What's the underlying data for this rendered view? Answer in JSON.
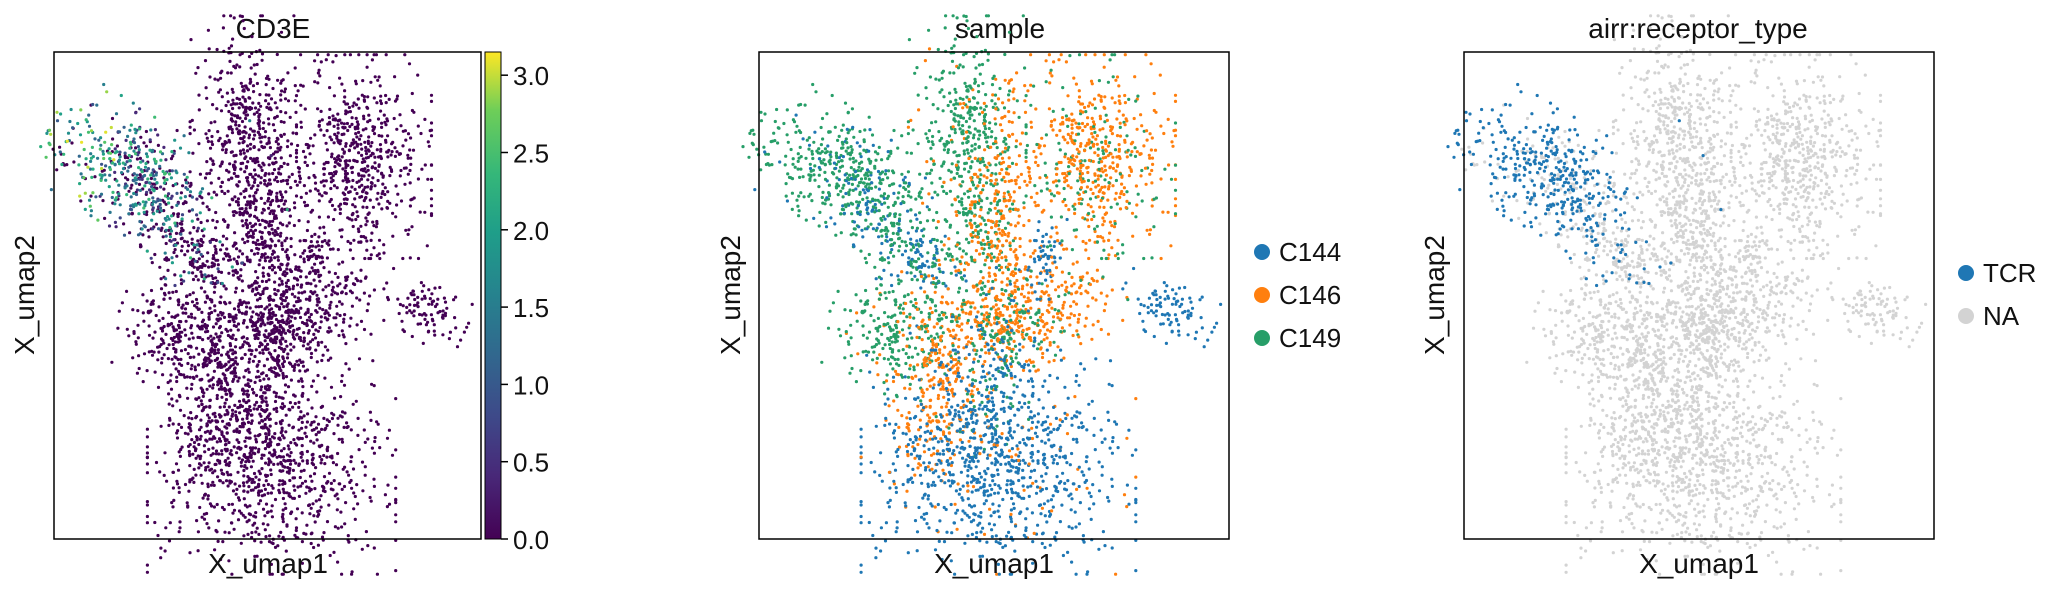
{
  "chart_data": [
    {
      "type": "scatter",
      "title": "CD3E",
      "xlabel": "X_umap1",
      "ylabel": "X_umap2",
      "color_by": "continuous",
      "colormap": "viridis",
      "colorbar": {
        "min": 0.0,
        "max": 3.15,
        "ticks": [
          "0.0",
          "0.5",
          "1.0",
          "1.5",
          "2.0",
          "2.5",
          "3.0"
        ],
        "tick_values": [
          0.0,
          0.5,
          1.0,
          1.5,
          2.0,
          2.5,
          3.0
        ]
      },
      "grid": false,
      "legend": "none"
    },
    {
      "type": "scatter",
      "title": "sample",
      "xlabel": "X_umap1",
      "ylabel": "X_umap2",
      "color_by": "categorical",
      "legend": "right",
      "grid": false,
      "categories": [
        {
          "name": "C144",
          "color": "#1f77b4"
        },
        {
          "name": "C146",
          "color": "#ff7f0e"
        },
        {
          "name": "C149",
          "color": "#279e68"
        }
      ]
    },
    {
      "type": "scatter",
      "title": "airr:receptor_type",
      "xlabel": "X_umap1",
      "ylabel": "X_umap2",
      "color_by": "categorical",
      "legend": "right",
      "grid": false,
      "categories": [
        {
          "name": "TCR",
          "color": "#1f77b4"
        },
        {
          "name": "NA",
          "color": "#d3d3d3"
        }
      ]
    }
  ]
}
